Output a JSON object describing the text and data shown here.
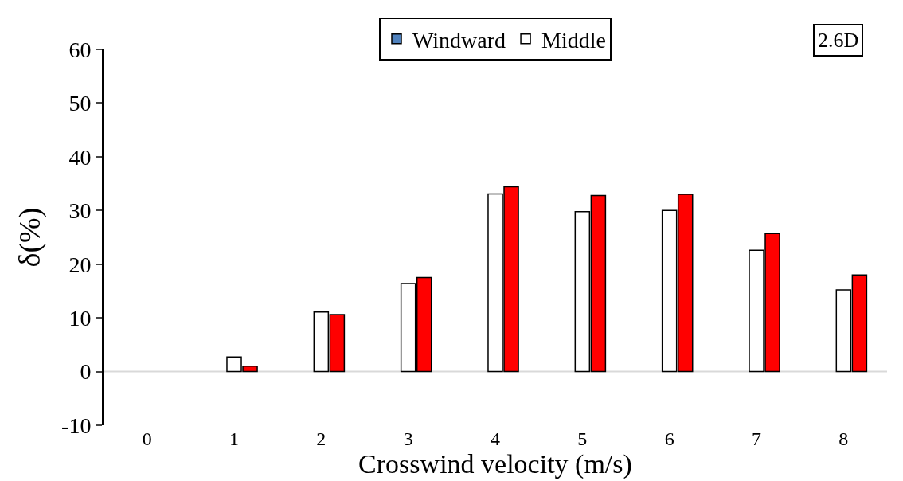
{
  "chart_data": {
    "type": "bar",
    "xlabel": "Crosswind velocity (m/s)",
    "ylabel": "δ(%)",
    "categories": [
      "0",
      "1",
      "2",
      "3",
      "4",
      "5",
      "6",
      "7",
      "8"
    ],
    "series": [
      {
        "name": "Windward",
        "color": "#4f81bd",
        "values": [
          null,
          null,
          null,
          null,
          null,
          null,
          null,
          null,
          null
        ]
      },
      {
        "name": "Middle",
        "color": "#ffffff",
        "values": [
          null,
          2.7,
          11.1,
          16.4,
          33.1,
          29.8,
          30.0,
          22.6,
          15.2
        ]
      },
      {
        "color": "#ff0000",
        "values": [
          null,
          1.0,
          10.6,
          17.5,
          34.4,
          32.8,
          33.0,
          25.7,
          18.0
        ]
      }
    ],
    "ylim": [
      -10,
      60
    ],
    "yticks": [
      -10,
      0,
      10,
      20,
      30,
      40,
      50,
      60
    ],
    "grid": false,
    "ref_lines": [
      {
        "axis": "y",
        "value": 0,
        "color": "#d9d9d9"
      }
    ],
    "legend": "top",
    "annotations": [
      "2.6D"
    ]
  }
}
